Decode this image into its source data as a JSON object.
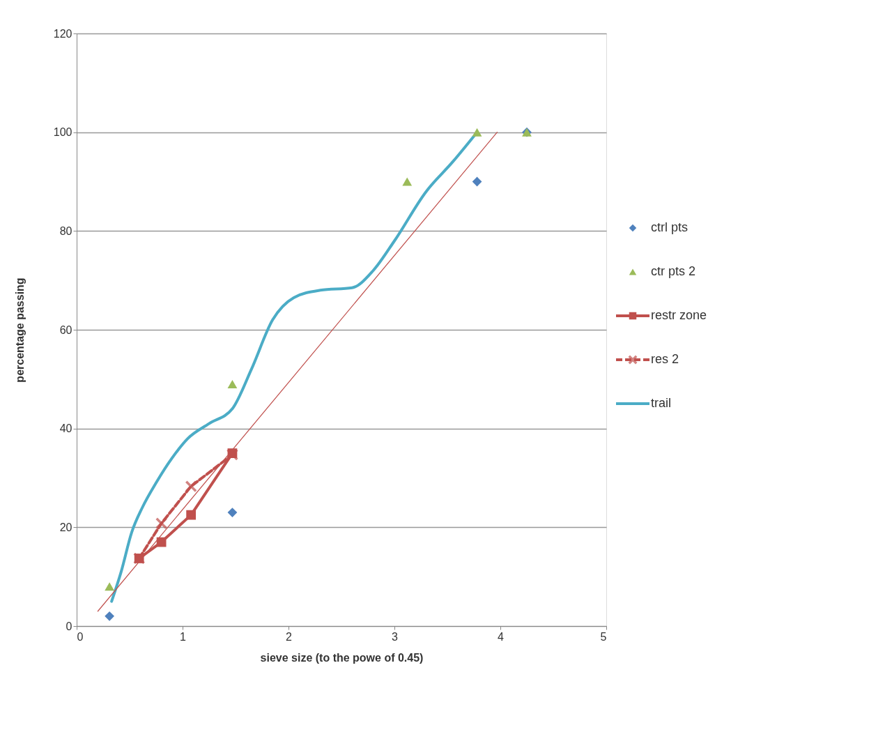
{
  "chart_data": {
    "type": "scatter",
    "xlabel": "sieve size (to the powe of 0.45)",
    "ylabel": "percentage passing",
    "xlim": [
      0,
      5
    ],
    "xticks": [
      0,
      1,
      2,
      3,
      4,
      5
    ],
    "ylim": [
      0,
      120
    ],
    "yticks": [
      0,
      20,
      40,
      60,
      80,
      100,
      120
    ],
    "grid": "y",
    "legend": "right",
    "series": [
      {
        "name": "ctrl pts",
        "marker": "diamond",
        "color": "#4f81bd",
        "x": [
          0.31,
          1.47,
          3.78,
          4.25
        ],
        "values": [
          2,
          23,
          90,
          100
        ]
      },
      {
        "name": "ctr pts 2",
        "marker": "triangle",
        "color": "#9bbb59",
        "x": [
          0.31,
          1.47,
          3.12,
          3.78,
          4.25
        ],
        "values": [
          8,
          49,
          90,
          100,
          100
        ]
      },
      {
        "name": "restr zone",
        "type": "line",
        "marker": "square",
        "line_style": "solid",
        "color": "#c0504d",
        "x": [
          0.59,
          0.8,
          1.08,
          1.47
        ],
        "values": [
          13.7,
          17,
          22.5,
          35
        ]
      },
      {
        "name": "res 2",
        "type": "line",
        "marker": "cross",
        "line_style": "dashed",
        "color": "#c0504d",
        "x": [
          0.59,
          0.8,
          1.08,
          1.47
        ],
        "values": [
          13.7,
          20.8,
          28.3,
          34.7
        ]
      },
      {
        "name": "trail",
        "type": "line",
        "marker": "none",
        "line_style": "solid",
        "color": "#4bacc6",
        "x": [
          0.33,
          0.42,
          0.52,
          0.62,
          0.75,
          0.9,
          1.05,
          1.25,
          1.47,
          1.65,
          1.85,
          2.05,
          2.3,
          2.6,
          2.8,
          3.0,
          3.3,
          3.55,
          3.78
        ],
        "values": [
          5,
          11,
          19,
          24,
          29,
          34,
          38,
          41,
          44,
          52,
          62,
          66.5,
          68,
          68.5,
          72,
          78,
          88,
          94,
          100
        ]
      },
      {
        "type": "line",
        "marker": "none",
        "line_style": "solid",
        "color": "#c0504d",
        "x": [
          0.2,
          3.97
        ],
        "values": [
          3,
          100
        ]
      }
    ]
  }
}
